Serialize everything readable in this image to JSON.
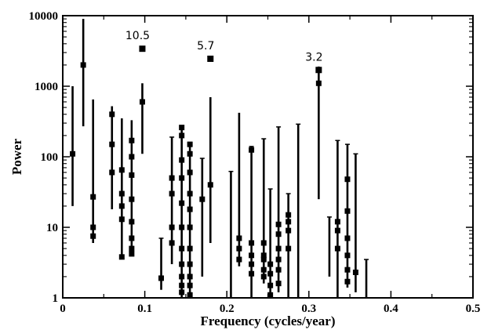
{
  "chart_data": {
    "type": "scatter",
    "title": "",
    "xlabel": "Frequency (cycles/year)",
    "ylabel": "Power",
    "xlim": [
      0,
      0.5
    ],
    "ylim": [
      1,
      10000
    ],
    "y_scale": "log",
    "x_ticks": [
      "0",
      "0.1",
      "0.2",
      "0.3",
      "0.4",
      "0.5"
    ],
    "x_tick_values": [
      0,
      0.1,
      0.2,
      0.3,
      0.4,
      0.5
    ],
    "y_ticks": [
      "1",
      "10",
      "100",
      "1000",
      "10000"
    ],
    "y_tick_values": [
      1,
      10,
      100,
      1000,
      10000
    ],
    "grid": false,
    "marker_color": "#000000",
    "error_bars": [
      {
        "x": 0.012,
        "lo": 20,
        "hi": 1000,
        "points": [
          110
        ]
      },
      {
        "x": 0.025,
        "lo": 270,
        "hi": 9000,
        "points": [
          2000
        ]
      },
      {
        "x": 0.037,
        "lo": 6,
        "hi": 650,
        "points": [
          27,
          10,
          7.5
        ]
      },
      {
        "x": 0.06,
        "lo": 18,
        "hi": 520,
        "points": [
          400,
          150,
          60
        ]
      },
      {
        "x": 0.072,
        "lo": 3.5,
        "hi": 350,
        "points": [
          65,
          30,
          20,
          13,
          3.8
        ]
      },
      {
        "x": 0.084,
        "lo": 4,
        "hi": 330,
        "points": [
          170,
          100,
          55,
          25,
          12,
          7,
          5,
          4.2
        ]
      },
      {
        "x": 0.097,
        "lo": 110,
        "hi": 1100,
        "points": [
          600
        ]
      },
      {
        "x": 0.12,
        "lo": 1.3,
        "hi": 7,
        "points": [
          1.9
        ]
      },
      {
        "x": 0.133,
        "lo": 3,
        "hi": 190,
        "points": [
          50,
          30,
          10,
          6
        ]
      },
      {
        "x": 0.145,
        "lo": 1,
        "hi": 250,
        "points": [
          260,
          200,
          90,
          50,
          22,
          10,
          5,
          3,
          2,
          1.5,
          1.2
        ]
      },
      {
        "x": 0.155,
        "lo": 1,
        "hi": 160,
        "points": [
          150,
          110,
          60,
          30,
          18,
          10,
          5,
          3,
          2,
          1.5,
          1.1
        ]
      },
      {
        "x": 0.17,
        "lo": 2,
        "hi": 95,
        "points": [
          25
        ]
      },
      {
        "x": 0.18,
        "lo": 6,
        "hi": 700,
        "points": [
          40
        ]
      },
      {
        "x": 0.205,
        "lo": 1,
        "hi": 62,
        "points": []
      },
      {
        "x": 0.215,
        "lo": 2.8,
        "hi": 420,
        "points": [
          7,
          5,
          3.5
        ]
      },
      {
        "x": 0.23,
        "lo": 1,
        "hi": 140,
        "points": [
          125,
          6,
          4,
          3,
          2.2
        ]
      },
      {
        "x": 0.245,
        "lo": 1.6,
        "hi": 180,
        "points": [
          6,
          4,
          3.5,
          2.5,
          2
        ]
      },
      {
        "x": 0.253,
        "lo": 1,
        "hi": 35,
        "points": [
          3,
          2.2,
          1.5,
          1.1
        ]
      },
      {
        "x": 0.263,
        "lo": 1.2,
        "hi": 265,
        "points": [
          11,
          8,
          5,
          3.5,
          2.5,
          1.6
        ]
      },
      {
        "x": 0.275,
        "lo": 1,
        "hi": 30,
        "points": [
          15,
          12,
          9,
          5
        ]
      },
      {
        "x": 0.287,
        "lo": 1,
        "hi": 290,
        "points": []
      },
      {
        "x": 0.312,
        "lo": 25,
        "hi": 1900,
        "points": [
          1100
        ]
      },
      {
        "x": 0.325,
        "lo": 2,
        "hi": 14,
        "points": []
      },
      {
        "x": 0.335,
        "lo": 1,
        "hi": 170,
        "points": [
          12,
          9,
          5
        ]
      },
      {
        "x": 0.347,
        "lo": 1.4,
        "hi": 150,
        "points": [
          48,
          17,
          7,
          4,
          2.5,
          1.7
        ]
      },
      {
        "x": 0.357,
        "lo": 1.2,
        "hi": 110,
        "points": [
          2.3
        ]
      },
      {
        "x": 0.37,
        "lo": 1,
        "hi": 3.5,
        "points": []
      }
    ],
    "peaks": [
      {
        "x": 0.097,
        "y": 3400,
        "label": "10.5"
      },
      {
        "x": 0.18,
        "y": 2450,
        "label": "5.7"
      },
      {
        "x": 0.312,
        "y": 1700,
        "label": "3.2"
      }
    ]
  }
}
